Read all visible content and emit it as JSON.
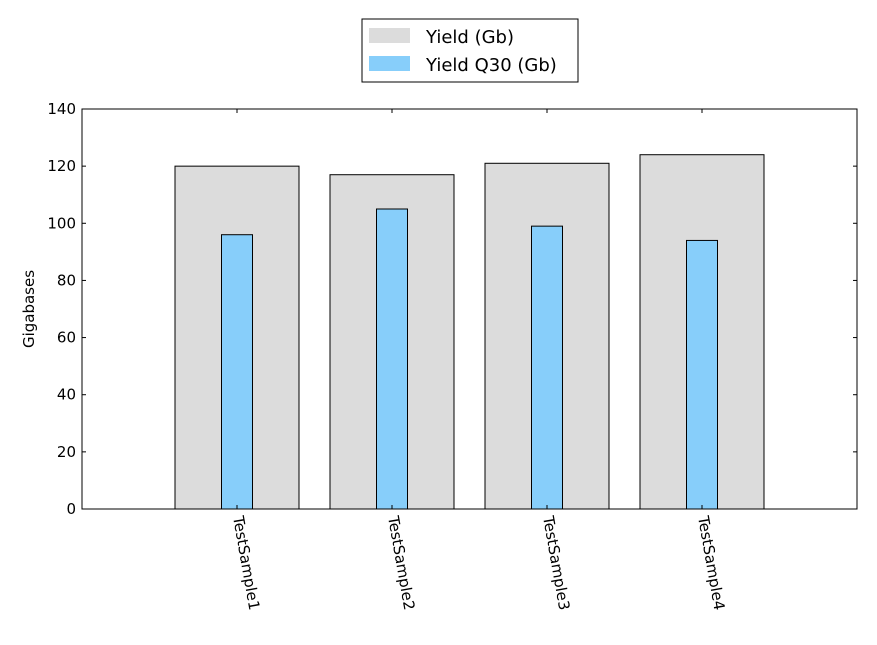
{
  "chart_data": {
    "type": "bar",
    "categories": [
      "TestSample1",
      "TestSample2",
      "TestSample3",
      "TestSample4"
    ],
    "series": [
      {
        "name": "Yield (Gb)",
        "values": [
          120,
          117,
          121,
          124
        ],
        "color": "#dcdcdc"
      },
      {
        "name": "Yield Q30 (Gb)",
        "values": [
          96,
          105,
          99,
          94
        ],
        "color": "#87cefa"
      }
    ],
    "xlabel": "",
    "ylabel": "Gigabases",
    "ylim": [
      0,
      140
    ],
    "yticks": [
      0,
      20,
      40,
      60,
      80,
      100,
      120,
      140
    ],
    "grid": false,
    "legend_position": "top-center"
  }
}
